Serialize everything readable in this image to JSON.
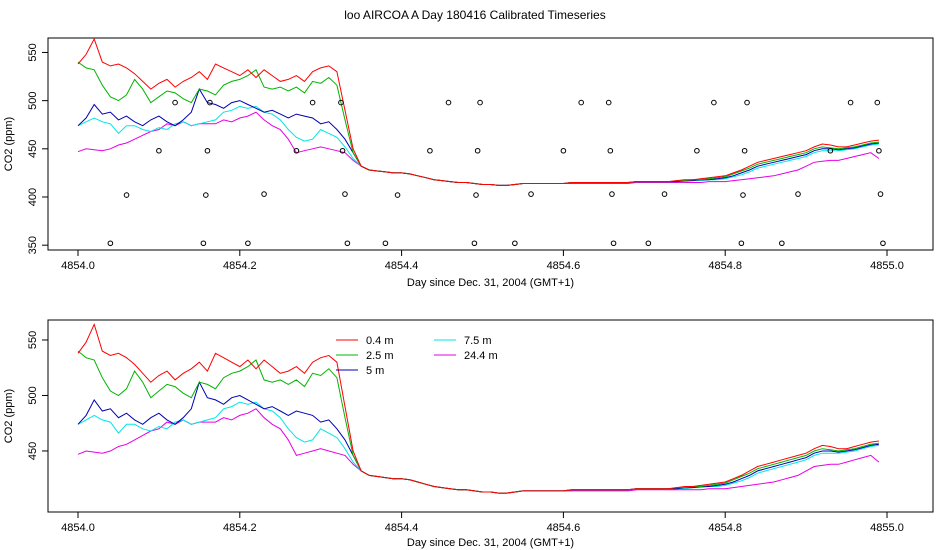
{
  "page": {
    "title": "loo AIRCOA A  Day 180416  Calibrated Timeseries"
  },
  "chart_data": [
    {
      "type": "line",
      "panel": "top",
      "xlabel": "Day since Dec. 31, 2004 (GMT+1)",
      "ylabel": "CO2 (ppm)",
      "xlim": [
        4854.0,
        4855.0
      ],
      "ylim": [
        345,
        565
      ],
      "x_ticks": [
        "4854.0",
        "4854.2",
        "4854.4",
        "4854.6",
        "4854.8",
        "4855.0"
      ],
      "y_ticks": [
        "350",
        "400",
        "450",
        "500",
        "550"
      ],
      "legend": false,
      "series": [
        {
          "name": "0.4 m",
          "color": "#ff0000",
          "values": []
        },
        {
          "name": "2.5 m",
          "color": "#00b400",
          "values": []
        },
        {
          "name": "5 m",
          "color": "#0000b4",
          "values": []
        },
        {
          "name": "7.5 m",
          "color": "#00e6e6",
          "values": []
        },
        {
          "name": "24.4 m",
          "color": "#e600e6",
          "values": []
        }
      ],
      "calibration_points": [
        [
          4854.04,
          352
        ],
        [
          4854.06,
          402
        ],
        [
          4854.1,
          448
        ],
        [
          4854.12,
          498
        ],
        [
          4854.155,
          352
        ],
        [
          4854.158,
          402
        ],
        [
          4854.16,
          448
        ],
        [
          4854.163,
          498
        ],
        [
          4854.21,
          352
        ],
        [
          4854.23,
          403
        ],
        [
          4854.27,
          448
        ],
        [
          4854.29,
          498
        ],
        [
          4854.325,
          498
        ],
        [
          4854.327,
          448
        ],
        [
          4854.33,
          403
        ],
        [
          4854.333,
          352
        ],
        [
          4854.38,
          352
        ],
        [
          4854.395,
          402
        ],
        [
          4854.435,
          448
        ],
        [
          4854.458,
          498
        ],
        [
          4854.49,
          352
        ],
        [
          4854.492,
          402
        ],
        [
          4854.494,
          448
        ],
        [
          4854.497,
          498
        ],
        [
          4854.54,
          352
        ],
        [
          4854.56,
          403
        ],
        [
          4854.6,
          448
        ],
        [
          4854.622,
          498
        ],
        [
          4854.656,
          498
        ],
        [
          4854.658,
          448
        ],
        [
          4854.66,
          403
        ],
        [
          4854.662,
          352
        ],
        [
          4854.705,
          352
        ],
        [
          4854.725,
          403
        ],
        [
          4854.765,
          448
        ],
        [
          4854.786,
          498
        ],
        [
          4854.82,
          352
        ],
        [
          4854.822,
          402
        ],
        [
          4854.824,
          448
        ],
        [
          4854.827,
          498
        ],
        [
          4854.87,
          352
        ],
        [
          4854.89,
          403
        ],
        [
          4854.93,
          448
        ],
        [
          4854.955,
          498
        ],
        [
          4854.988,
          498
        ],
        [
          4854.99,
          448
        ],
        [
          4854.992,
          403
        ],
        [
          4854.995,
          352
        ]
      ]
    },
    {
      "type": "line",
      "panel": "bottom",
      "xlabel": "Day since Dec. 31, 2004 (GMT+1)",
      "ylabel": "CO2 (ppm)",
      "xlim": [
        4854.0,
        4855.0
      ],
      "ylim": [
        395,
        568
      ],
      "x_ticks": [
        "4854.0",
        "4854.2",
        "4854.4",
        "4854.6",
        "4854.8",
        "4855.0"
      ],
      "y_ticks": [
        "450",
        "500",
        "550"
      ],
      "legend": true,
      "legend_position": "top-left",
      "legend_entries": [
        {
          "label": "0.4 m",
          "color": "#ff0000"
        },
        {
          "label": "2.5 m",
          "color": "#00b400"
        },
        {
          "label": "5 m",
          "color": "#0000b4"
        },
        {
          "label": "7.5 m",
          "color": "#00e6e6"
        },
        {
          "label": "24.4 m",
          "color": "#e600e6"
        }
      ]
    }
  ],
  "series_x": [
    4854.0,
    4854.01,
    4854.02,
    4854.03,
    4854.04,
    4854.05,
    4854.06,
    4854.07,
    4854.08,
    4854.09,
    4854.1,
    4854.11,
    4854.12,
    4854.13,
    4854.14,
    4854.15,
    4854.16,
    4854.17,
    4854.18,
    4854.19,
    4854.2,
    4854.21,
    4854.22,
    4854.23,
    4854.24,
    4854.25,
    4854.26,
    4854.27,
    4854.28,
    4854.29,
    4854.3,
    4854.31,
    4854.32,
    4854.33,
    4854.34,
    4854.35,
    4854.36,
    4854.37,
    4854.38,
    4854.39,
    4854.4,
    4854.41,
    4854.42,
    4854.43,
    4854.44,
    4854.45,
    4854.46,
    4854.47,
    4854.48,
    4854.49,
    4854.5,
    4854.51,
    4854.52,
    4854.53,
    4854.54,
    4854.55,
    4854.56,
    4854.57,
    4854.58,
    4854.59,
    4854.6,
    4854.61,
    4854.62,
    4854.63,
    4854.64,
    4854.65,
    4854.66,
    4854.67,
    4854.68,
    4854.69,
    4854.7,
    4854.71,
    4854.72,
    4854.73,
    4854.74,
    4854.75,
    4854.76,
    4854.77,
    4854.78,
    4854.79,
    4854.8,
    4854.81,
    4854.82,
    4854.83,
    4854.84,
    4854.85,
    4854.86,
    4854.87,
    4854.88,
    4854.89,
    4854.9,
    4854.91,
    4854.92,
    4854.93,
    4854.94,
    4854.95,
    4854.96,
    4854.97,
    4854.98,
    4854.99
  ],
  "series_values": {
    "0.4 m": [
      538,
      548,
      564,
      540,
      536,
      538,
      534,
      528,
      520,
      512,
      518,
      522,
      514,
      520,
      524,
      530,
      522,
      538,
      534,
      530,
      526,
      532,
      524,
      532,
      526,
      520,
      522,
      526,
      520,
      530,
      534,
      536,
      530,
      490,
      450,
      432,
      428,
      427,
      426,
      425,
      425,
      424,
      422,
      420,
      418,
      417,
      416,
      415,
      415,
      414,
      413,
      413,
      412,
      412,
      413,
      414,
      414,
      414,
      414,
      414,
      414,
      415,
      415,
      415,
      415,
      415,
      415,
      415,
      415,
      416,
      416,
      416,
      416,
      416,
      417,
      418,
      418,
      419,
      420,
      421,
      422,
      425,
      428,
      432,
      436,
      438,
      440,
      442,
      444,
      446,
      448,
      452,
      455,
      454,
      452,
      452,
      454,
      456,
      458,
      459
    ],
    "2.5 m": [
      540,
      534,
      532,
      516,
      504,
      500,
      506,
      522,
      512,
      498,
      504,
      510,
      508,
      502,
      498,
      512,
      510,
      506,
      516,
      520,
      522,
      526,
      532,
      514,
      512,
      514,
      510,
      514,
      508,
      520,
      518,
      524,
      516,
      480,
      446,
      432,
      428,
      427,
      426,
      425,
      425,
      424,
      422,
      420,
      418,
      417,
      416,
      415,
      415,
      414,
      413,
      413,
      412,
      412,
      413,
      414,
      414,
      414,
      414,
      414,
      414,
      415,
      415,
      415,
      415,
      415,
      415,
      415,
      415,
      416,
      416,
      416,
      416,
      416,
      417,
      417,
      418,
      418,
      419,
      420,
      421,
      424,
      427,
      430,
      434,
      436,
      438,
      440,
      442,
      444,
      446,
      450,
      452,
      451,
      450,
      451,
      452,
      454,
      456,
      457
    ],
    "5 m": [
      474,
      482,
      496,
      486,
      488,
      480,
      484,
      478,
      474,
      480,
      484,
      478,
      474,
      480,
      488,
      512,
      498,
      496,
      492,
      498,
      500,
      496,
      492,
      488,
      490,
      486,
      482,
      486,
      484,
      482,
      476,
      478,
      470,
      460,
      446,
      432,
      428,
      427,
      426,
      425,
      425,
      424,
      422,
      420,
      418,
      417,
      416,
      415,
      415,
      414,
      413,
      413,
      412,
      412,
      413,
      414,
      414,
      414,
      414,
      414,
      414,
      415,
      415,
      415,
      415,
      415,
      415,
      415,
      415,
      416,
      416,
      416,
      416,
      416,
      416,
      417,
      417,
      418,
      418,
      419,
      420,
      422,
      425,
      428,
      432,
      434,
      436,
      438,
      440,
      442,
      444,
      448,
      450,
      450,
      449,
      450,
      451,
      453,
      455,
      456
    ],
    "7.5 m": [
      474,
      478,
      482,
      478,
      476,
      466,
      474,
      474,
      470,
      468,
      472,
      470,
      476,
      478,
      474,
      476,
      478,
      480,
      488,
      490,
      494,
      492,
      494,
      488,
      486,
      480,
      470,
      462,
      458,
      460,
      470,
      466,
      462,
      452,
      440,
      432,
      428,
      427,
      426,
      425,
      425,
      424,
      422,
      420,
      418,
      417,
      416,
      415,
      415,
      414,
      413,
      413,
      412,
      412,
      413,
      414,
      414,
      414,
      414,
      414,
      414,
      415,
      415,
      415,
      415,
      415,
      415,
      415,
      415,
      416,
      416,
      416,
      416,
      416,
      416,
      416,
      417,
      417,
      418,
      418,
      419,
      421,
      423,
      426,
      430,
      432,
      434,
      436,
      438,
      440,
      442,
      446,
      448,
      448,
      448,
      449,
      450,
      452,
      454,
      455
    ],
    "24.4 m": [
      447,
      450,
      449,
      448,
      450,
      454,
      456,
      460,
      464,
      468,
      470,
      476,
      474,
      478,
      474,
      476,
      476,
      476,
      480,
      478,
      482,
      484,
      488,
      480,
      474,
      470,
      460,
      446,
      448,
      450,
      452,
      450,
      448,
      446,
      438,
      432,
      428,
      427,
      426,
      425,
      425,
      424,
      422,
      420,
      418,
      417,
      416,
      415,
      415,
      414,
      413,
      413,
      412,
      412,
      413,
      414,
      414,
      414,
      414,
      414,
      414,
      414,
      414,
      414,
      414,
      414,
      414,
      414,
      414,
      415,
      415,
      415,
      415,
      415,
      415,
      415,
      415,
      415,
      416,
      416,
      416,
      417,
      418,
      419,
      420,
      421,
      422,
      424,
      426,
      428,
      432,
      436,
      437,
      438,
      438,
      440,
      442,
      444,
      446,
      440
    ]
  }
}
